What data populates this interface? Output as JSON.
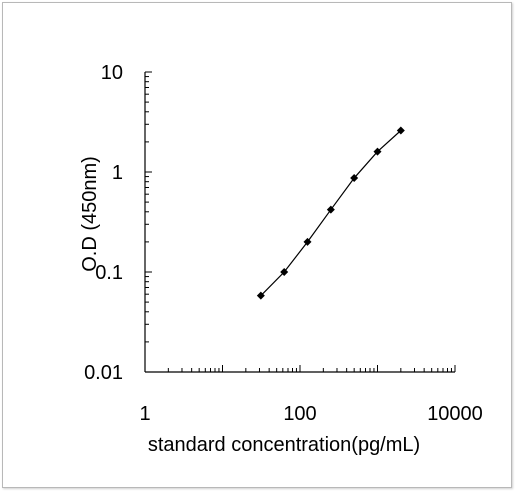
{
  "chart_data": {
    "type": "line",
    "title": "",
    "xlabel": "standard concentration(pg/mL)",
    "ylabel": "O.D (450nm)",
    "x_scale": "log",
    "y_scale": "log",
    "xlim": [
      1,
      10000
    ],
    "ylim": [
      0.01,
      10
    ],
    "x_ticks": [
      {
        "value": 1,
        "label": "1"
      },
      {
        "value": 100,
        "label": "100"
      },
      {
        "value": 10000,
        "label": "10000"
      }
    ],
    "y_ticks": [
      {
        "value": 10,
        "label": "10"
      },
      {
        "value": 1,
        "label": "1"
      },
      {
        "value": 0.1,
        "label": "0.1"
      },
      {
        "value": 0.01,
        "label": "0.01"
      }
    ],
    "grid": false,
    "legend": "none",
    "line_color": "#000000",
    "marker": "diamond",
    "series": [
      {
        "x": [
          31.25,
          62.5,
          125,
          250,
          500,
          1000,
          2000
        ],
        "y": [
          0.058,
          0.1,
          0.2,
          0.42,
          0.87,
          1.6,
          2.6
        ]
      }
    ]
  }
}
